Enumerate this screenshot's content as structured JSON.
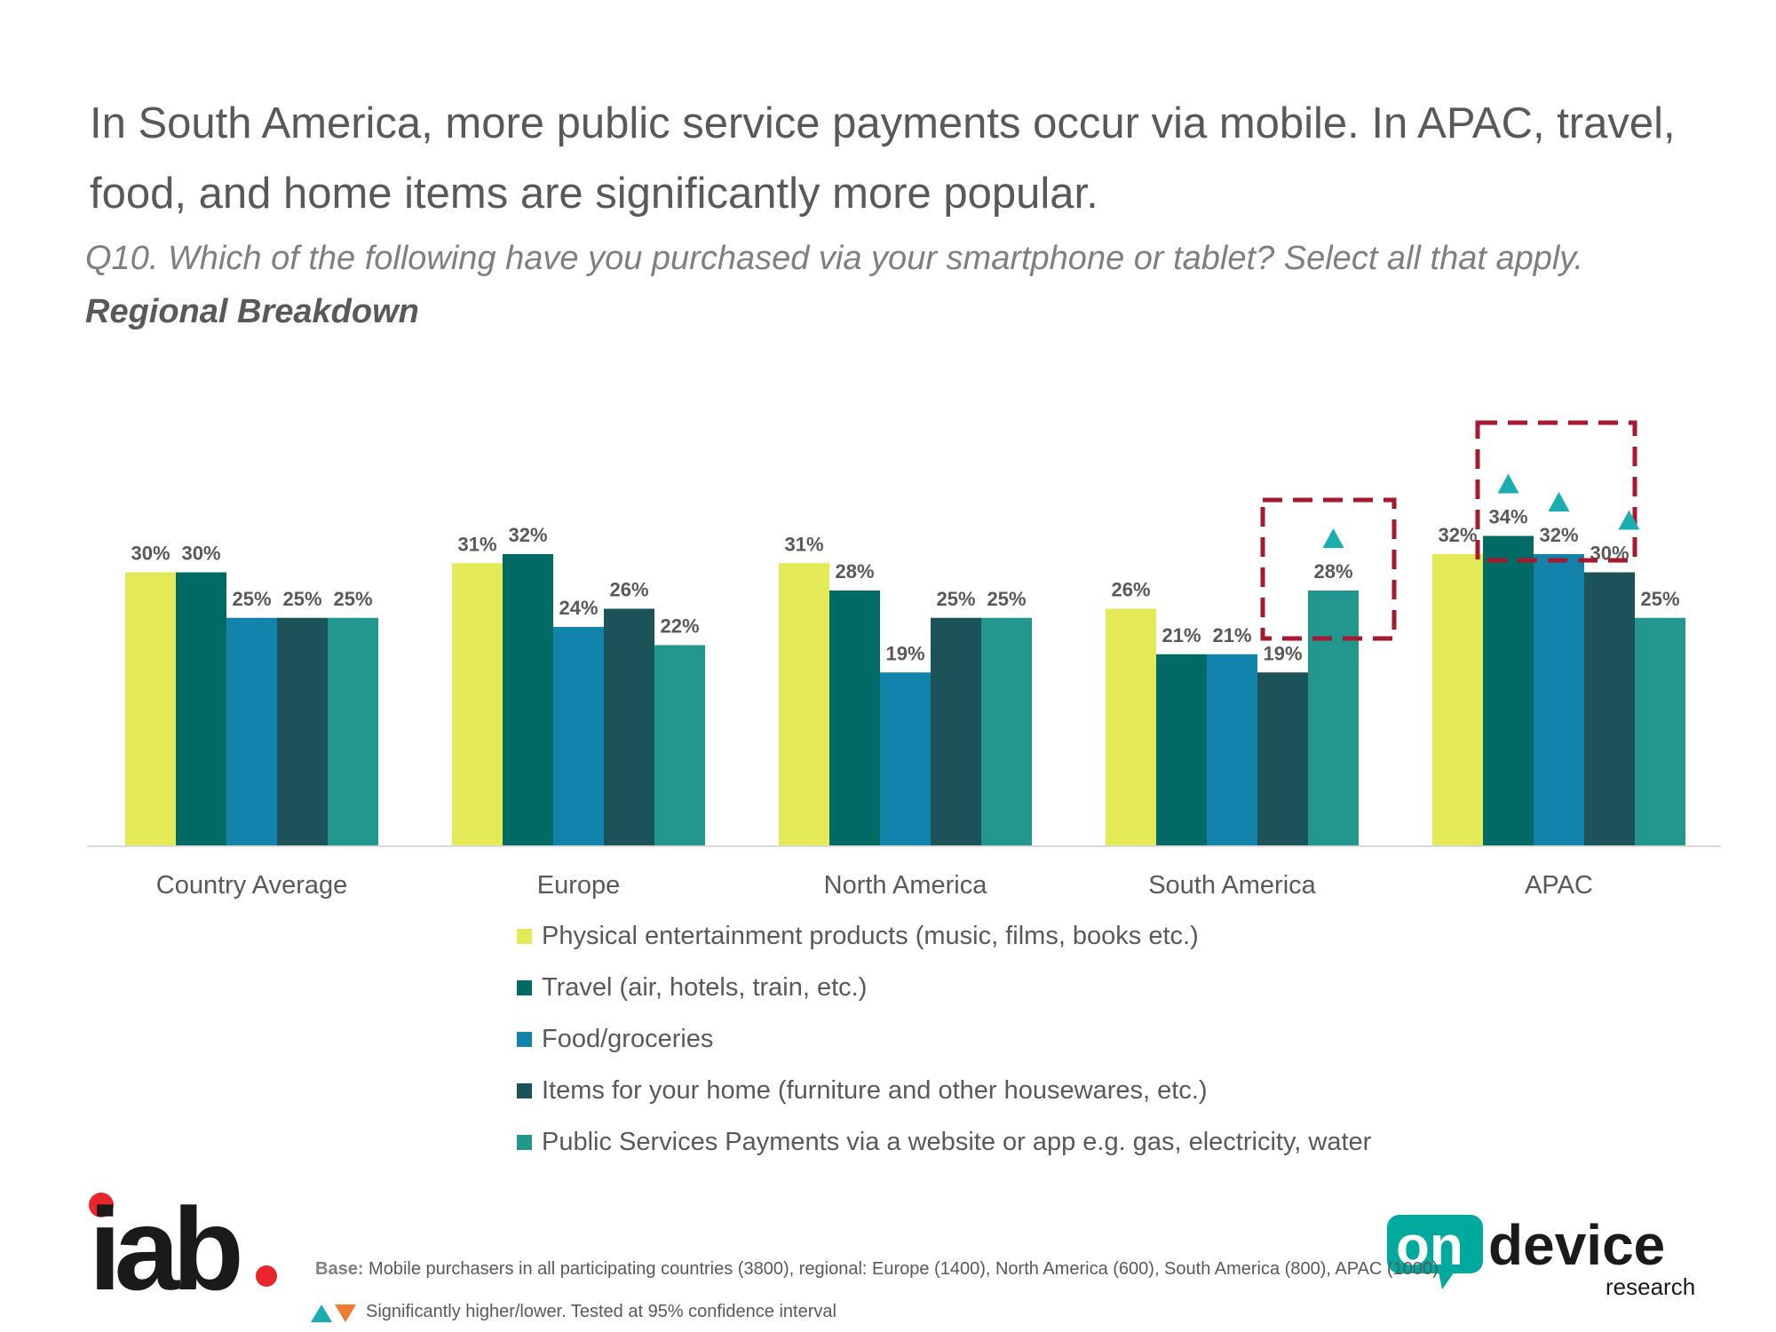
{
  "title": "In South America, more public service payments occur via mobile. In APAC, travel, food, and home items are significantly more popular.",
  "question": "Q10. Which of the following have you purchased via your smartphone or tablet? Select all that apply.",
  "subtitle": "Regional Breakdown",
  "chart_data": {
    "type": "bar",
    "categories": [
      "Country Average",
      "Europe",
      "North America",
      "South America",
      "APAC"
    ],
    "ylim": [
      0,
      40
    ],
    "grid": false,
    "legend_position": "bottom",
    "series": [
      {
        "name": "Physical entertainment products (music, films, books etc.)",
        "color": "#e4ea57",
        "values": [
          30,
          31,
          31,
          26,
          32
        ],
        "labels": [
          "30%",
          "31%",
          "31%",
          "26%",
          "32%"
        ]
      },
      {
        "name": "Travel (air, hotels, train, etc.)",
        "color": "#006b64",
        "values": [
          30,
          32,
          28,
          21,
          34
        ],
        "labels": [
          "30%",
          "32%",
          "28%",
          "21%",
          "34%"
        ]
      },
      {
        "name": "Food/groceries",
        "color": "#1283aa",
        "values": [
          25,
          24,
          19,
          21,
          32
        ],
        "labels": [
          "25%",
          "24%",
          "19%",
          "21%",
          "32%"
        ]
      },
      {
        "name": "Items for your home (furniture and other housewares, etc.)",
        "color": "#1c5359",
        "values": [
          25,
          26,
          25,
          19,
          30
        ],
        "labels": [
          "25%",
          "26%",
          "25%",
          "19%",
          "30%"
        ]
      },
      {
        "name": "Public Services Payments via a website or app e.g. gas, electricity, water",
        "color": "#21978e",
        "values": [
          25,
          22,
          25,
          28,
          25
        ],
        "labels": [
          "25%",
          "22%",
          "25%",
          "28%",
          "25%"
        ]
      }
    ],
    "significant_higher": [
      {
        "category": "South America",
        "series": 4
      },
      {
        "category": "APAC",
        "series": 1
      },
      {
        "category": "APAC",
        "series": 2
      },
      {
        "category": "APAC",
        "series": 3
      }
    ],
    "highlight_boxes": [
      "South America",
      "APAC"
    ],
    "colors": {
      "up_arrow": "#1aaeb0",
      "down_arrow": "#ed7d31",
      "highlight_box": "#a6192e"
    }
  },
  "footer": {
    "base_label": "Base:",
    "base_text": "Mobile purchasers in all participating countries (3800), regional: Europe (1400), North America (600), South America (800), APAC (1000)",
    "significance_note": "Significantly higher/lower. Tested at 95% confidence interval"
  },
  "logos": {
    "iab": "iab",
    "ondevice_on": "on",
    "ondevice_device": "device",
    "ondevice_research": "research"
  }
}
